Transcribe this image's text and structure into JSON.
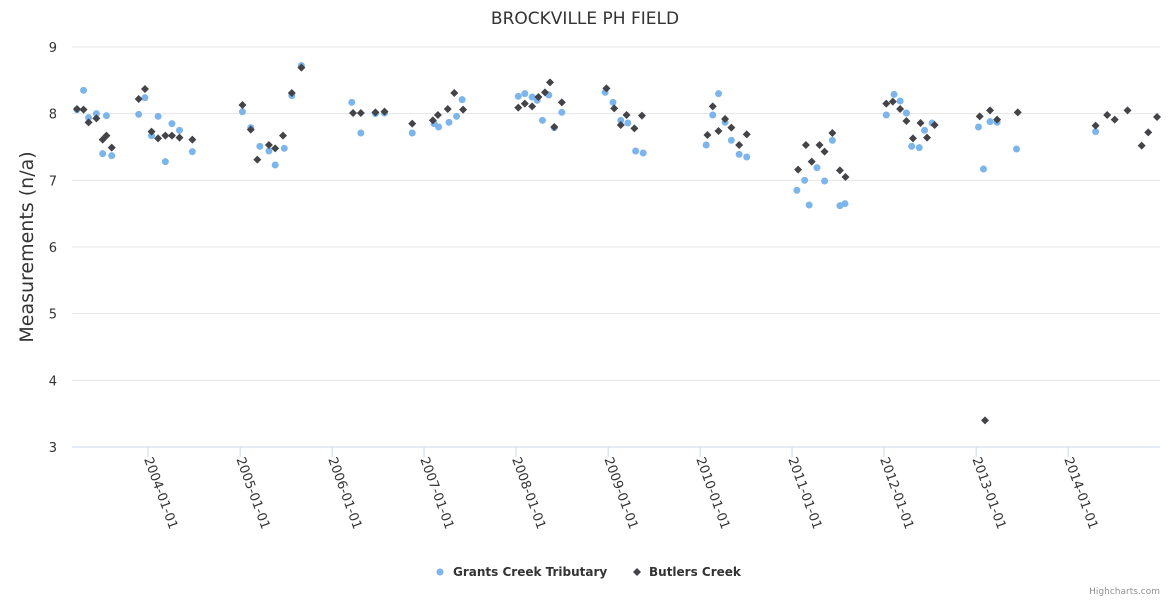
{
  "chart_data": {
    "type": "scatter",
    "title": "BROCKVILLE PH FIELD",
    "xlabel": "",
    "ylabel": "Measurements (n/a)",
    "ylim": [
      3,
      9
    ],
    "yticks": [
      "3",
      "4",
      "5",
      "6",
      "7",
      "8",
      "9"
    ],
    "xlim": [
      "2003-03-20",
      "2014-12-31"
    ],
    "xticks": [
      "2004-01-01",
      "2005-01-01",
      "2006-01-01",
      "2007-01-01",
      "2008-01-01",
      "2009-01-01",
      "2010-01-01",
      "2011-01-01",
      "2012-01-01",
      "2013-01-01",
      "2014-01-01"
    ],
    "grid": true,
    "legend_position": "bottom-center",
    "credits": "Highcharts.com",
    "series": [
      {
        "name": "Grants Creek Tributary",
        "color": "#7cb5ec",
        "marker": "circle",
        "points": [
          [
            "2003-03-25",
            8.06
          ],
          [
            "2003-04-20",
            8.35
          ],
          [
            "2003-05-10",
            7.94
          ],
          [
            "2003-06-10",
            8.0
          ],
          [
            "2003-07-05",
            7.4
          ],
          [
            "2003-07-20",
            7.97
          ],
          [
            "2003-08-10",
            7.37
          ],
          [
            "2003-11-25",
            7.99
          ],
          [
            "2003-12-20",
            8.24
          ],
          [
            "2004-01-15",
            7.67
          ],
          [
            "2004-02-10",
            7.96
          ],
          [
            "2004-03-10",
            7.28
          ],
          [
            "2004-04-05",
            7.85
          ],
          [
            "2004-05-05",
            7.75
          ],
          [
            "2004-06-25",
            7.43
          ],
          [
            "2005-01-10",
            8.03
          ],
          [
            "2005-02-12",
            7.79
          ],
          [
            "2005-03-20",
            7.51
          ],
          [
            "2005-04-25",
            7.44
          ],
          [
            "2005-05-20",
            7.23
          ],
          [
            "2005-06-25",
            7.48
          ],
          [
            "2005-07-25",
            8.27
          ],
          [
            "2005-09-01",
            8.72
          ],
          [
            "2006-03-20",
            8.17
          ],
          [
            "2006-04-25",
            7.71
          ],
          [
            "2006-06-22",
            8.0
          ],
          [
            "2006-07-28",
            8.01
          ],
          [
            "2006-11-15",
            7.71
          ],
          [
            "2007-02-10",
            7.85
          ],
          [
            "2007-02-28",
            7.8
          ],
          [
            "2007-04-10",
            7.87
          ],
          [
            "2007-05-10",
            7.96
          ],
          [
            "2007-06-01",
            8.21
          ],
          [
            "2008-01-10",
            8.26
          ],
          [
            "2008-02-05",
            8.3
          ],
          [
            "2008-03-05",
            8.25
          ],
          [
            "2008-03-25",
            8.2
          ],
          [
            "2008-04-15",
            7.9
          ],
          [
            "2008-05-10",
            8.28
          ],
          [
            "2008-06-01",
            7.79
          ],
          [
            "2008-07-01",
            8.02
          ],
          [
            "2008-12-20",
            8.32
          ],
          [
            "2009-01-20",
            8.17
          ],
          [
            "2009-02-20",
            7.9
          ],
          [
            "2009-03-20",
            7.86
          ],
          [
            "2009-04-20",
            7.44
          ],
          [
            "2009-05-20",
            7.41
          ],
          [
            "2010-01-25",
            7.53
          ],
          [
            "2010-02-20",
            7.98
          ],
          [
            "2010-03-15",
            8.3
          ],
          [
            "2010-04-10",
            7.87
          ],
          [
            "2010-05-05",
            7.6
          ],
          [
            "2010-06-05",
            7.39
          ],
          [
            "2010-07-05",
            7.35
          ],
          [
            "2011-01-20",
            6.85
          ],
          [
            "2011-02-20",
            7.0
          ],
          [
            "2011-03-10",
            6.63
          ],
          [
            "2011-04-10",
            7.19
          ],
          [
            "2011-05-10",
            6.99
          ],
          [
            "2011-06-10",
            7.6
          ],
          [
            "2011-07-10",
            6.62
          ],
          [
            "2011-07-30",
            6.65
          ],
          [
            "2012-01-10",
            7.98
          ],
          [
            "2012-02-10",
            8.29
          ],
          [
            "2012-03-05",
            8.19
          ],
          [
            "2012-03-30",
            8.01
          ],
          [
            "2012-04-20",
            7.51
          ],
          [
            "2012-05-20",
            7.49
          ],
          [
            "2012-06-10",
            7.75
          ],
          [
            "2012-07-10",
            7.86
          ],
          [
            "2013-01-10",
            7.8
          ],
          [
            "2013-01-30",
            7.17
          ],
          [
            "2013-02-25",
            7.88
          ],
          [
            "2013-03-25",
            7.87
          ],
          [
            "2013-06-10",
            7.47
          ],
          [
            "2014-04-20",
            7.73
          ]
        ]
      },
      {
        "name": "Butlers Creek",
        "color": "#434348",
        "marker": "diamond",
        "points": [
          [
            "2003-03-25",
            8.07
          ],
          [
            "2003-04-20",
            8.06
          ],
          [
            "2003-05-10",
            7.87
          ],
          [
            "2003-06-10",
            7.93
          ],
          [
            "2003-07-05",
            7.61
          ],
          [
            "2003-07-20",
            7.67
          ],
          [
            "2003-08-10",
            7.49
          ],
          [
            "2003-11-25",
            8.22
          ],
          [
            "2003-12-20",
            8.37
          ],
          [
            "2004-01-15",
            7.73
          ],
          [
            "2004-02-10",
            7.63
          ],
          [
            "2004-03-10",
            7.67
          ],
          [
            "2004-04-05",
            7.67
          ],
          [
            "2004-05-05",
            7.64
          ],
          [
            "2004-06-25",
            7.61
          ],
          [
            "2005-01-10",
            8.13
          ],
          [
            "2005-02-12",
            7.76
          ],
          [
            "2005-03-10",
            7.31
          ],
          [
            "2005-04-25",
            7.53
          ],
          [
            "2005-05-20",
            7.48
          ],
          [
            "2005-06-20",
            7.67
          ],
          [
            "2005-07-25",
            8.31
          ],
          [
            "2005-09-01",
            8.69
          ],
          [
            "2006-03-25",
            8.01
          ],
          [
            "2006-04-25",
            8.01
          ],
          [
            "2006-06-22",
            8.02
          ],
          [
            "2006-07-28",
            8.03
          ],
          [
            "2006-11-15",
            7.85
          ],
          [
            "2007-02-05",
            7.9
          ],
          [
            "2007-02-25",
            7.98
          ],
          [
            "2007-04-05",
            8.07
          ],
          [
            "2007-05-01",
            8.31
          ],
          [
            "2007-06-05",
            8.06
          ],
          [
            "2008-01-10",
            8.09
          ],
          [
            "2008-02-05",
            8.15
          ],
          [
            "2008-03-05",
            8.11
          ],
          [
            "2008-03-30",
            8.25
          ],
          [
            "2008-04-25",
            8.32
          ],
          [
            "2008-05-15",
            8.47
          ],
          [
            "2008-06-01",
            7.8
          ],
          [
            "2008-07-01",
            8.17
          ],
          [
            "2008-12-25",
            8.38
          ],
          [
            "2009-01-25",
            8.08
          ],
          [
            "2009-02-20",
            7.83
          ],
          [
            "2009-03-15",
            7.98
          ],
          [
            "2009-04-15",
            7.78
          ],
          [
            "2009-05-15",
            7.97
          ],
          [
            "2010-01-30",
            7.68
          ],
          [
            "2010-02-20",
            8.11
          ],
          [
            "2010-03-15",
            7.74
          ],
          [
            "2010-04-10",
            7.92
          ],
          [
            "2010-05-05",
            7.79
          ],
          [
            "2010-06-05",
            7.53
          ],
          [
            "2010-07-05",
            7.69
          ],
          [
            "2011-01-25",
            7.16
          ],
          [
            "2011-02-25",
            7.53
          ],
          [
            "2011-03-20",
            7.28
          ],
          [
            "2011-04-20",
            7.53
          ],
          [
            "2011-05-10",
            7.43
          ],
          [
            "2011-06-10",
            7.71
          ],
          [
            "2011-07-10",
            7.15
          ],
          [
            "2011-08-01",
            7.05
          ],
          [
            "2012-01-10",
            8.15
          ],
          [
            "2012-02-05",
            8.18
          ],
          [
            "2012-03-05",
            8.07
          ],
          [
            "2012-03-30",
            7.89
          ],
          [
            "2012-04-25",
            7.63
          ],
          [
            "2012-05-25",
            7.86
          ],
          [
            "2012-06-20",
            7.64
          ],
          [
            "2012-07-20",
            7.83
          ],
          [
            "2013-01-15",
            7.96
          ],
          [
            "2013-02-05",
            3.4
          ],
          [
            "2013-02-25",
            8.05
          ],
          [
            "2013-03-25",
            7.91
          ],
          [
            "2013-06-15",
            8.02
          ],
          [
            "2014-04-20",
            7.82
          ],
          [
            "2014-06-05",
            7.98
          ],
          [
            "2014-07-05",
            7.91
          ],
          [
            "2014-08-25",
            8.05
          ],
          [
            "2014-10-20",
            7.52
          ],
          [
            "2014-11-15",
            7.72
          ],
          [
            "2014-12-20",
            7.95
          ]
        ]
      }
    ]
  }
}
